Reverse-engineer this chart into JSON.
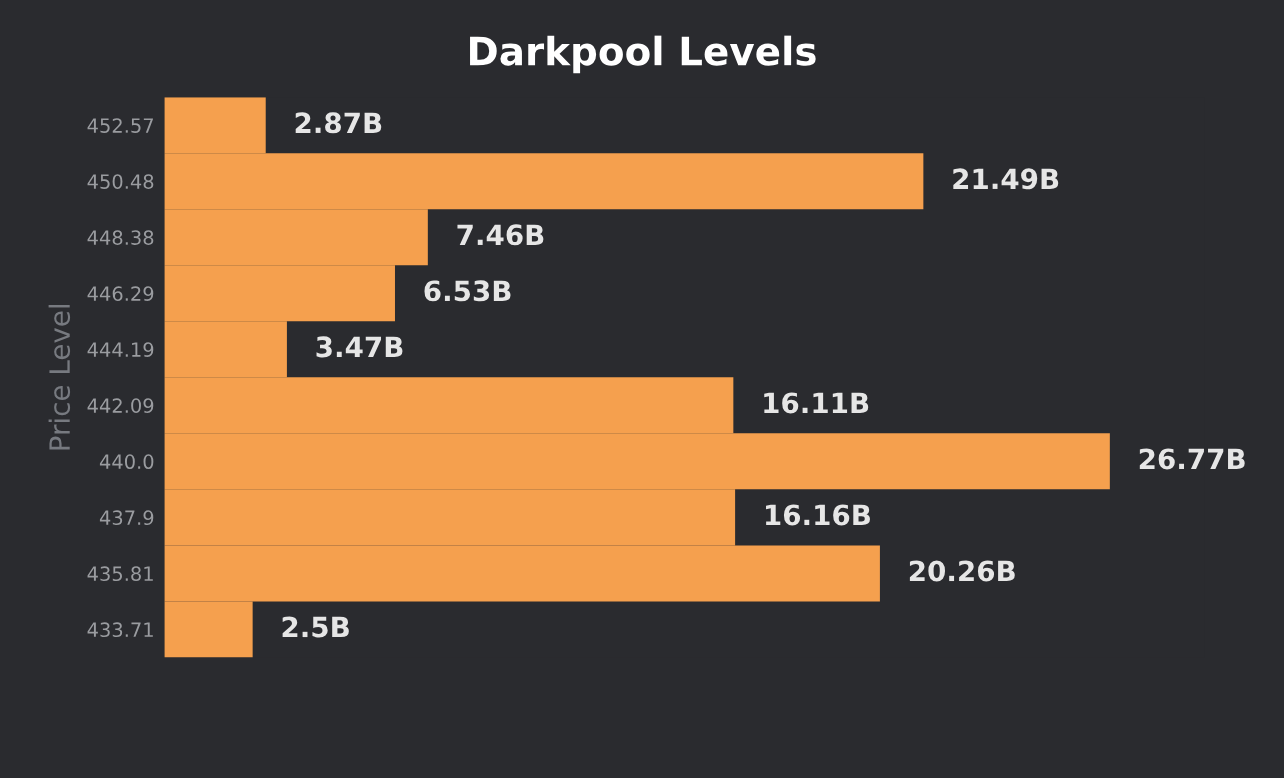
{
  "chart_data": {
    "type": "bar",
    "orientation": "horizontal",
    "title": "Darkpool Levels",
    "ylabel": "Price Level",
    "categories": [
      "452.57",
      "450.48",
      "448.38",
      "446.29",
      "444.19",
      "442.09",
      "440.0",
      "437.9",
      "435.81",
      "433.71"
    ],
    "values": [
      2.87,
      21.49,
      7.46,
      6.53,
      3.47,
      16.11,
      26.77,
      16.16,
      20.26,
      2.5
    ],
    "value_labels": [
      "2.87B",
      "21.49B",
      "7.46B",
      "6.53B",
      "3.47B",
      "16.11B",
      "26.77B",
      "16.16B",
      "20.26B",
      "2.5B"
    ],
    "color": "#f5a04e",
    "grid": false,
    "legend": false
  }
}
